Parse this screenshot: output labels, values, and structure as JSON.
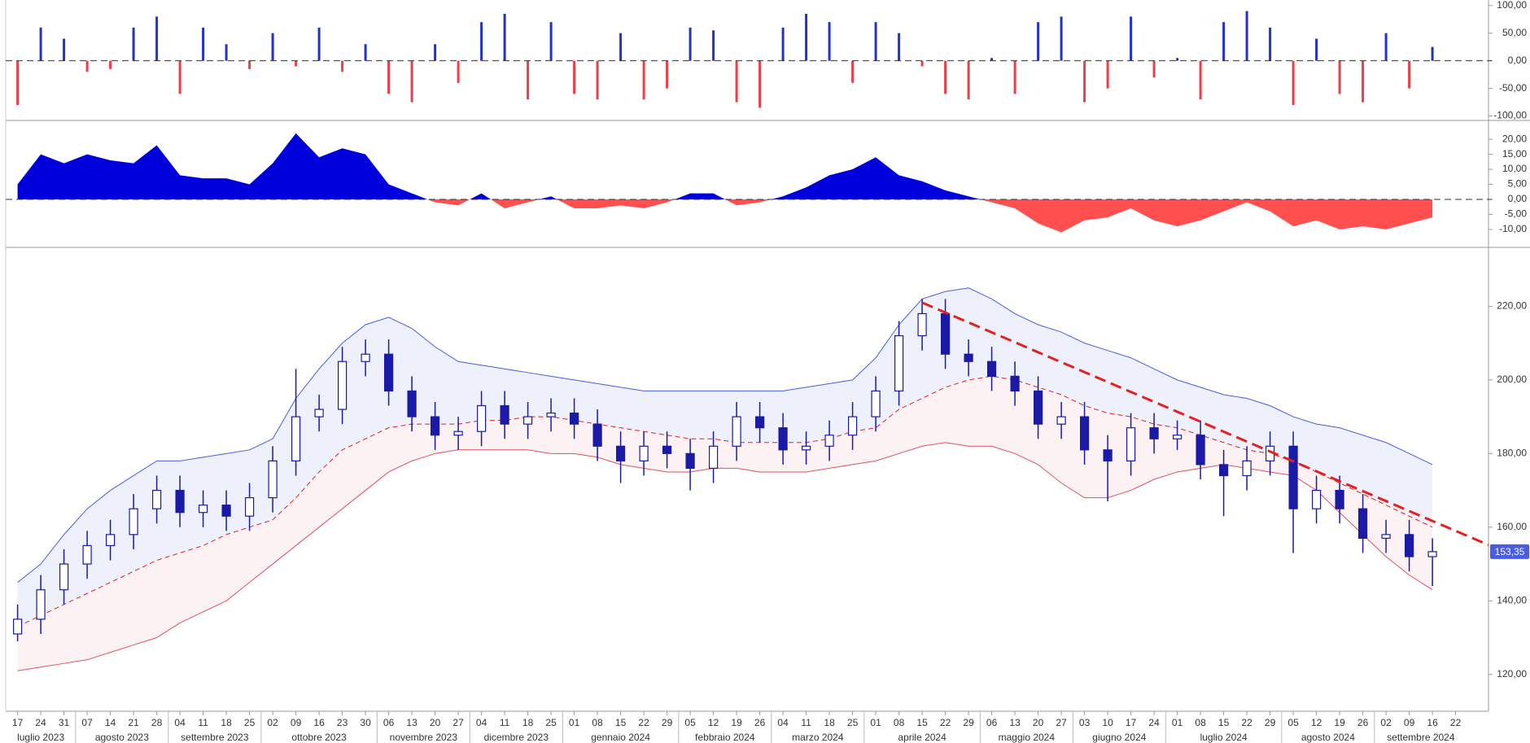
{
  "chart_data": [
    {
      "type": "bar",
      "color_up": "#2233cc",
      "color_down": "#e8404a",
      "zero_line": 0,
      "values": [
        -80,
        60,
        40,
        -20,
        -15,
        60,
        80,
        -60,
        60,
        30,
        -15,
        50,
        -10,
        60,
        -20,
        30,
        -60,
        -75,
        30,
        -40,
        70,
        85,
        -70,
        70,
        -60,
        -70,
        50,
        -70,
        -50,
        60,
        55,
        -75,
        -85,
        60,
        85,
        70,
        -40,
        70,
        50,
        -10,
        -60,
        -70,
        5,
        -60,
        70,
        80,
        -75,
        -50,
        80,
        -30,
        5,
        -70,
        70,
        90,
        60,
        -80,
        40,
        -60,
        -75,
        50,
        -50,
        25,
        null
      ],
      "ylim": [
        -108,
        110
      ],
      "yticks": [
        {
          "value": 100,
          "label": "100,00"
        },
        {
          "value": 50,
          "label": "50,00"
        },
        {
          "value": 0,
          "label": "0,00"
        },
        {
          "value": -50,
          "label": "-50,00"
        },
        {
          "value": -100,
          "label": "-100,00"
        }
      ]
    },
    {
      "type": "area",
      "color_up": "#0000dd",
      "color_down": "#ff4f4f",
      "zero_line": 0,
      "values": [
        5,
        15,
        12,
        15,
        13,
        12,
        18,
        8,
        7,
        7,
        5,
        12,
        22,
        14,
        17,
        15,
        5,
        2,
        -1,
        -2,
        2,
        -3,
        -1,
        1,
        -3,
        -3,
        -2,
        -3,
        -1,
        2,
        2,
        -2,
        -1,
        1,
        4,
        8,
        10,
        14,
        8,
        6,
        3,
        1,
        -1,
        -3,
        -8,
        -11,
        -7,
        -6,
        -3,
        -7,
        -9,
        -7,
        -4,
        -1,
        -4,
        -9,
        -7,
        -10,
        -9,
        -10,
        -8,
        -6,
        null
      ],
      "ylim": [
        -16,
        26
      ],
      "yticks": [
        {
          "value": 20,
          "label": "20,00"
        },
        {
          "value": 15,
          "label": "15,00"
        },
        {
          "value": 10,
          "label": "10,00"
        },
        {
          "value": 5,
          "label": "5,00"
        },
        {
          "value": 0,
          "label": "0,00"
        },
        {
          "value": -5,
          "label": "-5,00"
        },
        {
          "value": -10,
          "label": "-10,00"
        }
      ]
    },
    {
      "type": "candlestick",
      "color": "#1a1aa6",
      "categories": [
        "17",
        "24",
        "31",
        "07",
        "14",
        "21",
        "28",
        "04",
        "11",
        "18",
        "25",
        "02",
        "09",
        "16",
        "23",
        "30",
        "06",
        "13",
        "20",
        "27",
        "04",
        "11",
        "18",
        "25",
        "01",
        "08",
        "15",
        "22",
        "29",
        "05",
        "12",
        "19",
        "26",
        "04",
        "11",
        "18",
        "25",
        "01",
        "08",
        "15",
        "22",
        "29",
        "06",
        "13",
        "20",
        "27",
        "03",
        "10",
        "17",
        "24",
        "01",
        "08",
        "15",
        "22",
        "29",
        "05",
        "12",
        "19",
        "26",
        "02",
        "09",
        "16",
        "22"
      ],
      "periods": [
        "luglio 2023",
        null,
        null,
        "agosto 2023",
        null,
        null,
        null,
        "settembre 2023",
        null,
        null,
        null,
        "ottobre 2023",
        null,
        null,
        null,
        null,
        "novembre 2023",
        null,
        null,
        null,
        "dicembre 2023",
        null,
        null,
        null,
        "gennaio 2024",
        null,
        null,
        null,
        null,
        "febbraio 2024",
        null,
        null,
        null,
        "marzo 2024",
        null,
        null,
        null,
        "aprile 2024",
        null,
        null,
        null,
        null,
        "maggio 2024",
        null,
        null,
        null,
        "giugno 2024",
        null,
        null,
        null,
        "luglio 2024",
        null,
        null,
        null,
        null,
        "agosto 2024",
        null,
        null,
        null,
        "settembre 2024",
        null,
        null,
        null
      ],
      "open": [
        131,
        135,
        143,
        150,
        155,
        158,
        165,
        170,
        164,
        166,
        163,
        168,
        178,
        190,
        192,
        205,
        207,
        197,
        190,
        185,
        186,
        193,
        188,
        190,
        191,
        188,
        182,
        178,
        182,
        180,
        176,
        182,
        190,
        187,
        181,
        182,
        185,
        190,
        197,
        212,
        218,
        207,
        205,
        201,
        197,
        188,
        190,
        181,
        178,
        187,
        184,
        185,
        177,
        174,
        178,
        182,
        165,
        170,
        165,
        157,
        158,
        152,
        null
      ],
      "high": [
        139,
        147,
        154,
        159,
        162,
        169,
        174,
        174,
        170,
        170,
        172,
        182,
        203,
        196,
        209,
        211,
        211,
        201,
        194,
        190,
        197,
        197,
        194,
        195,
        195,
        192,
        186,
        186,
        186,
        184,
        186,
        194,
        194,
        191,
        186,
        189,
        194,
        201,
        216,
        222,
        222,
        211,
        209,
        205,
        201,
        194,
        194,
        185,
        191,
        191,
        189,
        189,
        181,
        182,
        186,
        186,
        174,
        174,
        169,
        162,
        162,
        157,
        null
      ],
      "low": [
        129,
        131,
        139,
        146,
        151,
        154,
        161,
        160,
        160,
        159,
        159,
        164,
        174,
        186,
        188,
        201,
        193,
        186,
        181,
        181,
        182,
        184,
        184,
        186,
        184,
        178,
        172,
        174,
        176,
        170,
        172,
        178,
        183,
        177,
        177,
        178,
        181,
        186,
        193,
        208,
        203,
        201,
        197,
        193,
        184,
        184,
        177,
        167,
        174,
        180,
        181,
        173,
        163,
        170,
        174,
        153,
        161,
        161,
        153,
        153,
        148,
        144,
        null
      ],
      "close": [
        135,
        143,
        150,
        155,
        158,
        165,
        170,
        164,
        166,
        163,
        168,
        178,
        190,
        192,
        205,
        207,
        197,
        190,
        185,
        186,
        193,
        188,
        190,
        191,
        188,
        182,
        178,
        182,
        180,
        176,
        182,
        190,
        187,
        181,
        182,
        185,
        190,
        197,
        212,
        218,
        207,
        205,
        201,
        197,
        188,
        190,
        181,
        178,
        187,
        184,
        185,
        177,
        174,
        178,
        182,
        165,
        170,
        165,
        157,
        158,
        152,
        153.35,
        null
      ],
      "bands": {
        "upper": [
          145,
          150,
          158,
          165,
          170,
          174,
          178,
          178,
          179,
          180,
          181,
          184,
          195,
          203,
          210,
          215,
          217,
          214,
          209,
          205,
          204,
          203,
          202,
          201,
          200,
          199,
          198,
          197,
          197,
          197,
          197,
          197,
          197,
          197,
          198,
          199,
          200,
          206,
          215,
          222,
          224,
          225,
          222,
          218,
          215,
          213,
          210,
          208,
          206,
          203,
          200,
          198,
          196,
          195,
          193,
          190,
          188,
          187,
          185,
          183,
          180,
          177,
          null
        ],
        "middle": [
          133,
          136,
          139,
          142,
          145,
          148,
          151,
          153,
          155,
          158,
          160,
          162,
          168,
          175,
          181,
          184,
          187,
          188,
          188,
          188,
          189,
          189,
          190,
          190,
          189,
          188,
          187,
          186,
          185,
          184,
          184,
          183,
          183,
          183,
          183,
          184,
          186,
          187,
          192,
          195,
          198,
          200,
          201,
          200,
          198,
          196,
          193,
          191,
          190,
          188,
          187,
          185,
          183,
          181,
          180,
          178,
          175,
          172,
          169,
          166,
          163,
          160,
          null
        ],
        "lower": [
          121,
          122,
          123,
          124,
          126,
          128,
          130,
          134,
          137,
          140,
          145,
          150,
          155,
          160,
          165,
          170,
          175,
          178,
          180,
          181,
          181,
          181,
          181,
          180,
          180,
          179,
          177,
          176,
          175,
          175,
          176,
          176,
          175,
          175,
          175,
          176,
          177,
          178,
          180,
          182,
          183,
          182,
          182,
          180,
          177,
          172,
          168,
          168,
          170,
          173,
          175,
          176,
          177,
          176,
          175,
          174,
          170,
          164,
          158,
          152,
          147,
          143,
          null
        ],
        "upper_color": "#4a5ce0",
        "lower_color": "#e05060",
        "middle_color": "#e02020"
      },
      "trendline": {
        "from": {
          "x": 39,
          "y": 221
        },
        "to": {
          "x": 62,
          "y": 159
        },
        "color": "#e52020"
      },
      "last_value": 153.35,
      "last_label": "153,35",
      "ylim": [
        110,
        236
      ],
      "yticks": [
        {
          "value": 120,
          "label": "120,00"
        },
        {
          "value": 140,
          "label": "140,00"
        },
        {
          "value": 160,
          "label": "160,00"
        },
        {
          "value": 180,
          "label": "180,00"
        },
        {
          "value": 200,
          "label": "200,00"
        },
        {
          "value": 220,
          "label": "220,00"
        }
      ]
    }
  ]
}
